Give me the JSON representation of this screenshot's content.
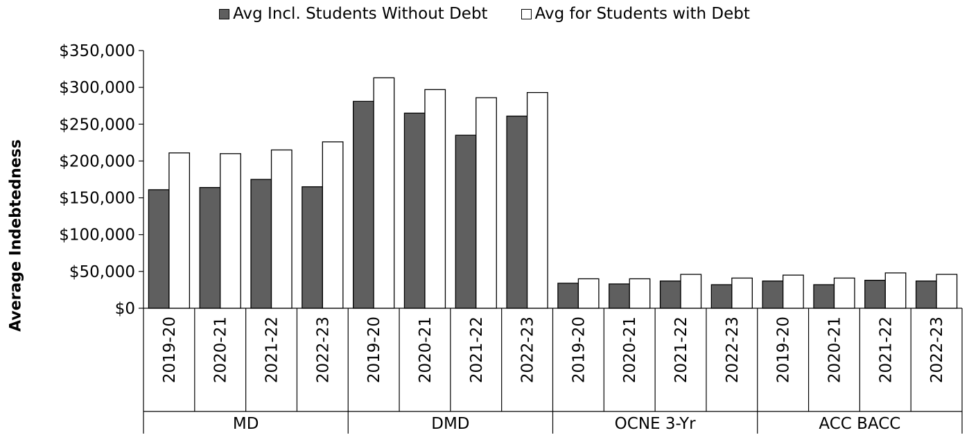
{
  "chart_data": {
    "type": "bar",
    "title": "",
    "xlabel": "",
    "ylabel": "Average Indebtedness",
    "ylim": [
      0,
      350000
    ],
    "yticks": [
      0,
      50000,
      100000,
      150000,
      200000,
      250000,
      300000,
      350000
    ],
    "ytick_labels": [
      "$0",
      "$50,000",
      "$100,000",
      "$150,000",
      "$200,000",
      "$250,000",
      "$300,000",
      "$350,000"
    ],
    "groups": [
      {
        "label": "MD",
        "categories": [
          "2019-20",
          "2020-21",
          "2021-22",
          "2022-23"
        ]
      },
      {
        "label": "DMD",
        "categories": [
          "2019-20",
          "2020-21",
          "2021-22",
          "2022-23"
        ]
      },
      {
        "label": "OCNE 3-Yr",
        "categories": [
          "2019-20",
          "2020-21",
          "2021-22",
          "2022-23"
        ]
      },
      {
        "label": "ACC BACC",
        "categories": [
          "2019-20",
          "2020-21",
          "2021-22",
          "2022-23"
        ]
      }
    ],
    "series": [
      {
        "name": "Avg Incl. Students Without Debt",
        "color": "#5f5f5f",
        "values": [
          161000,
          164000,
          175000,
          165000,
          281000,
          265000,
          235000,
          261000,
          34000,
          33000,
          37000,
          32000,
          37000,
          32000,
          38000,
          37000
        ]
      },
      {
        "name": "Avg for Students with Debt",
        "color": "#ffffff",
        "values": [
          211000,
          210000,
          215000,
          226000,
          313000,
          297000,
          286000,
          293000,
          40000,
          40000,
          46000,
          41000,
          45000,
          41000,
          48000,
          46000
        ]
      }
    ],
    "legend_position": "top",
    "grid": false
  }
}
